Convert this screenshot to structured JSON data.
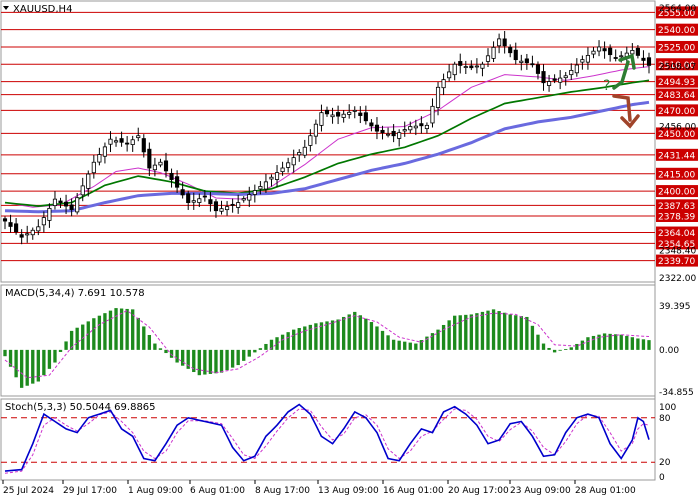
{
  "chart_data": {
    "type": "line",
    "symbol": "XAUUSD,H4",
    "price_axis": {
      "ymin": 2322.0,
      "ymax": 2564.0,
      "gray_ticks": [
        "2564.00",
        "2508.07",
        "2456.00",
        "2348.40",
        "2322.00"
      ]
    },
    "levels": [
      {
        "value": 2555.0,
        "label": "2555.00"
      },
      {
        "value": 2540.0,
        "label": "2540.00"
      },
      {
        "value": 2525.0,
        "label": "2525.00"
      },
      {
        "value": 2510.0,
        "label": "2510.00"
      },
      {
        "value": 2494.93,
        "label": "2494.93"
      },
      {
        "value": 2483.64,
        "label": "2483.64"
      },
      {
        "value": 2470.0,
        "label": "2470.00"
      },
      {
        "value": 2450.0,
        "label": "2450.00"
      },
      {
        "value": 2431.44,
        "label": "2431.44"
      },
      {
        "value": 2415.0,
        "label": "2415.00"
      },
      {
        "value": 2400.0,
        "label": "2400.00"
      },
      {
        "value": 2387.63,
        "label": "2387.63"
      },
      {
        "value": 2378.39,
        "label": "2378.39"
      },
      {
        "value": 2364.04,
        "label": "2364.04"
      },
      {
        "value": 2354.65,
        "label": "2354.65"
      },
      {
        "value": 2339.7,
        "label": "2339.70"
      }
    ],
    "x_labels": [
      "25 Jul 2024",
      "29 Jul 17:00",
      "1 Aug 09:00",
      "6 Aug 01:00",
      "8 Aug 17:00",
      "13 Aug 09:00",
      "16 Aug 01:00",
      "20 Aug 17:00",
      "23 Aug 09:00",
      "28 Aug 01:00"
    ],
    "price_keypoints": [
      [
        0,
        2374
      ],
      [
        3,
        2360
      ],
      [
        6,
        2369
      ],
      [
        9,
        2393
      ],
      [
        12,
        2384
      ],
      [
        16,
        2425
      ],
      [
        19,
        2445
      ],
      [
        22,
        2441
      ],
      [
        24,
        2448
      ],
      [
        26,
        2420
      ],
      [
        28,
        2425
      ],
      [
        30,
        2410
      ],
      [
        33,
        2390
      ],
      [
        36,
        2395
      ],
      [
        38,
        2383
      ],
      [
        42,
        2390
      ],
      [
        46,
        2404
      ],
      [
        50,
        2420
      ],
      [
        54,
        2438
      ],
      [
        57,
        2468
      ],
      [
        60,
        2465
      ],
      [
        63,
        2470
      ],
      [
        67,
        2452
      ],
      [
        70,
        2448
      ],
      [
        73,
        2456
      ],
      [
        76,
        2457
      ],
      [
        78,
        2490
      ],
      [
        81,
        2510
      ],
      [
        84,
        2507
      ],
      [
        86,
        2510
      ],
      [
        89,
        2532
      ],
      [
        92,
        2514
      ],
      [
        95,
        2510
      ],
      [
        97,
        2494
      ],
      [
        99,
        2496
      ],
      [
        101,
        2500
      ],
      [
        104,
        2514
      ],
      [
        107,
        2525
      ],
      [
        110,
        2515
      ],
      [
        113,
        2522
      ],
      [
        116,
        2509
      ]
    ],
    "moving_averages": [
      {
        "color": "#cc33cc",
        "width": 1,
        "keypoints": [
          [
            0,
            2390
          ],
          [
            5,
            2386
          ],
          [
            10,
            2388
          ],
          [
            16,
            2404
          ],
          [
            20,
            2417
          ],
          [
            24,
            2420
          ],
          [
            28,
            2416
          ],
          [
            33,
            2406
          ],
          [
            38,
            2394
          ],
          [
            43,
            2393
          ],
          [
            48,
            2404
          ],
          [
            54,
            2423
          ],
          [
            60,
            2445
          ],
          [
            66,
            2455
          ],
          [
            72,
            2456
          ],
          [
            78,
            2470
          ],
          [
            84,
            2490
          ],
          [
            90,
            2501
          ],
          [
            96,
            2499
          ],
          [
            101,
            2496
          ],
          [
            106,
            2500
          ],
          [
            111,
            2505
          ],
          [
            116,
            2508
          ]
        ]
      },
      {
        "color": "#007700",
        "width": 1.7,
        "keypoints": [
          [
            0,
            2390
          ],
          [
            6,
            2387
          ],
          [
            12,
            2390
          ],
          [
            18,
            2405
          ],
          [
            24,
            2413
          ],
          [
            30,
            2408
          ],
          [
            36,
            2400
          ],
          [
            42,
            2398
          ],
          [
            48,
            2402
          ],
          [
            54,
            2412
          ],
          [
            60,
            2424
          ],
          [
            66,
            2432
          ],
          [
            72,
            2438
          ],
          [
            78,
            2448
          ],
          [
            84,
            2463
          ],
          [
            90,
            2476
          ],
          [
            96,
            2481
          ],
          [
            102,
            2486
          ],
          [
            108,
            2490
          ],
          [
            113,
            2494
          ],
          [
            116,
            2496
          ]
        ]
      },
      {
        "color": "#6a6adf",
        "width": 3,
        "keypoints": [
          [
            0,
            2383
          ],
          [
            6,
            2382
          ],
          [
            12,
            2383
          ],
          [
            18,
            2390
          ],
          [
            24,
            2396
          ],
          [
            30,
            2398
          ],
          [
            36,
            2398
          ],
          [
            42,
            2397
          ],
          [
            48,
            2398
          ],
          [
            54,
            2402
          ],
          [
            60,
            2410
          ],
          [
            66,
            2418
          ],
          [
            72,
            2424
          ],
          [
            78,
            2432
          ],
          [
            84,
            2442
          ],
          [
            90,
            2454
          ],
          [
            96,
            2460
          ],
          [
            102,
            2464
          ],
          [
            108,
            2470
          ],
          [
            113,
            2475
          ],
          [
            116,
            2477
          ]
        ]
      }
    ],
    "macd": {
      "label": "MACD(5,34,4) 7.691 10.578",
      "axis_labels": [
        "39.395",
        "0.00",
        "-34.855"
      ],
      "ymin": -34.855,
      "ymax": 39.395,
      "histogram_keypoints": [
        [
          0,
          -5
        ],
        [
          3,
          -30
        ],
        [
          6,
          -25
        ],
        [
          9,
          -10
        ],
        [
          12,
          15
        ],
        [
          16,
          25
        ],
        [
          20,
          33
        ],
        [
          23,
          32
        ],
        [
          27,
          5
        ],
        [
          31,
          -10
        ],
        [
          35,
          -20
        ],
        [
          39,
          -18
        ],
        [
          42,
          -12
        ],
        [
          45,
          -2
        ],
        [
          48,
          8
        ],
        [
          52,
          16
        ],
        [
          56,
          21
        ],
        [
          60,
          24
        ],
        [
          63,
          30
        ],
        [
          66,
          22
        ],
        [
          70,
          8
        ],
        [
          74,
          5
        ],
        [
          78,
          16
        ],
        [
          81,
          27
        ],
        [
          84,
          28
        ],
        [
          88,
          32
        ],
        [
          91,
          28
        ],
        [
          94,
          26
        ],
        [
          97,
          5
        ],
        [
          99,
          -2
        ],
        [
          102,
          2
        ],
        [
          105,
          10
        ],
        [
          108,
          13
        ],
        [
          111,
          12
        ],
        [
          114,
          9
        ],
        [
          116,
          7.7
        ]
      ],
      "signal_keypoints": [
        [
          0,
          -8
        ],
        [
          4,
          -22
        ],
        [
          8,
          -20
        ],
        [
          12,
          2
        ],
        [
          17,
          20
        ],
        [
          22,
          31
        ],
        [
          26,
          18
        ],
        [
          30,
          -4
        ],
        [
          34,
          -15
        ],
        [
          38,
          -18
        ],
        [
          42,
          -15
        ],
        [
          46,
          -5
        ],
        [
          50,
          8
        ],
        [
          54,
          15
        ],
        [
          58,
          20
        ],
        [
          63,
          27
        ],
        [
          67,
          22
        ],
        [
          71,
          10
        ],
        [
          75,
          6
        ],
        [
          79,
          16
        ],
        [
          84,
          26
        ],
        [
          88,
          29
        ],
        [
          92,
          28
        ],
        [
          96,
          20
        ],
        [
          99,
          4
        ],
        [
          103,
          3
        ],
        [
          107,
          10
        ],
        [
          111,
          12
        ],
        [
          114,
          11
        ],
        [
          116,
          10.6
        ]
      ],
      "histogram_color": "#1d8a1d",
      "signal_color": "#cc33cc"
    },
    "stoch": {
      "label": "Stoch(5,3,3) 50.5044 69.8865",
      "axis_labels": [
        "100",
        "80",
        "20",
        "0"
      ],
      "ymin": 0,
      "ymax": 100,
      "levels": [
        80,
        20
      ],
      "k_keypoints": [
        [
          0,
          8
        ],
        [
          3,
          10
        ],
        [
          5,
          45
        ],
        [
          7,
          85
        ],
        [
          9,
          75
        ],
        [
          11,
          65
        ],
        [
          13,
          60
        ],
        [
          15,
          80
        ],
        [
          17,
          85
        ],
        [
          19,
          90
        ],
        [
          21,
          65
        ],
        [
          23,
          55
        ],
        [
          25,
          25
        ],
        [
          27,
          22
        ],
        [
          29,
          45
        ],
        [
          31,
          70
        ],
        [
          33,
          80
        ],
        [
          36,
          75
        ],
        [
          39,
          70
        ],
        [
          41,
          40
        ],
        [
          43,
          22
        ],
        [
          45,
          28
        ],
        [
          47,
          55
        ],
        [
          49,
          70
        ],
        [
          51,
          88
        ],
        [
          53,
          98
        ],
        [
          55,
          85
        ],
        [
          57,
          55
        ],
        [
          59,
          45
        ],
        [
          61,
          65
        ],
        [
          63,
          88
        ],
        [
          65,
          80
        ],
        [
          67,
          60
        ],
        [
          69,
          25
        ],
        [
          71,
          22
        ],
        [
          73,
          45
        ],
        [
          75,
          65
        ],
        [
          77,
          60
        ],
        [
          79,
          88
        ],
        [
          81,
          95
        ],
        [
          83,
          85
        ],
        [
          85,
          70
        ],
        [
          87,
          45
        ],
        [
          89,
          50
        ],
        [
          91,
          72
        ],
        [
          93,
          75
        ],
        [
          95,
          55
        ],
        [
          97,
          28
        ],
        [
          99,
          30
        ],
        [
          101,
          60
        ],
        [
          103,
          80
        ],
        [
          105,
          85
        ],
        [
          107,
          80
        ],
        [
          109,
          45
        ],
        [
          111,
          25
        ],
        [
          113,
          50
        ],
        [
          114,
          80
        ],
        [
          115,
          75
        ],
        [
          116,
          50.5
        ]
      ],
      "d_keypoints": [
        [
          0,
          5
        ],
        [
          3,
          8
        ],
        [
          5,
          30
        ],
        [
          7,
          70
        ],
        [
          9,
          80
        ],
        [
          11,
          70
        ],
        [
          13,
          62
        ],
        [
          15,
          72
        ],
        [
          17,
          84
        ],
        [
          19,
          88
        ],
        [
          21,
          75
        ],
        [
          23,
          60
        ],
        [
          25,
          35
        ],
        [
          27,
          25
        ],
        [
          29,
          35
        ],
        [
          31,
          60
        ],
        [
          33,
          76
        ],
        [
          36,
          76
        ],
        [
          39,
          72
        ],
        [
          41,
          52
        ],
        [
          43,
          30
        ],
        [
          45,
          25
        ],
        [
          47,
          42
        ],
        [
          49,
          62
        ],
        [
          51,
          80
        ],
        [
          53,
          92
        ],
        [
          55,
          90
        ],
        [
          57,
          68
        ],
        [
          59,
          50
        ],
        [
          61,
          58
        ],
        [
          63,
          80
        ],
        [
          65,
          84
        ],
        [
          67,
          70
        ],
        [
          69,
          38
        ],
        [
          71,
          25
        ],
        [
          73,
          35
        ],
        [
          75,
          55
        ],
        [
          77,
          62
        ],
        [
          79,
          78
        ],
        [
          81,
          92
        ],
        [
          83,
          90
        ],
        [
          85,
          78
        ],
        [
          87,
          55
        ],
        [
          89,
          48
        ],
        [
          91,
          64
        ],
        [
          93,
          74
        ],
        [
          95,
          62
        ],
        [
          97,
          40
        ],
        [
          99,
          30
        ],
        [
          101,
          48
        ],
        [
          103,
          72
        ],
        [
          105,
          84
        ],
        [
          107,
          82
        ],
        [
          109,
          60
        ],
        [
          111,
          35
        ],
        [
          113,
          45
        ],
        [
          114,
          65
        ],
        [
          115,
          72
        ],
        [
          116,
          69.9
        ]
      ],
      "k_color": "#0000cc",
      "d_color": "#cc33cc"
    },
    "annotations": [
      {
        "type": "arrow",
        "direction": "up",
        "color": "#2e7d32"
      },
      {
        "type": "arrow",
        "direction": "down",
        "color": "#a0442a"
      },
      {
        "type": "text",
        "text": "?",
        "color": "#2e7d32"
      }
    ],
    "colors": {
      "level_line": "#cc0000",
      "tag_fill": "#cc0000",
      "candle": "#000000",
      "grid": "#888888"
    }
  }
}
